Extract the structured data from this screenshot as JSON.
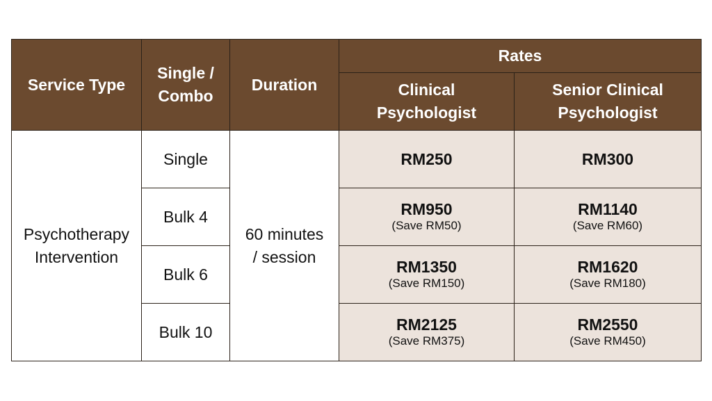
{
  "headers": {
    "service_type": "Service Type",
    "single_combo_line1": "Single /",
    "single_combo_line2": "Combo",
    "duration": "Duration",
    "rates": "Rates",
    "clinical_line1": "Clinical",
    "clinical_line2": "Psychologist",
    "senior_line1": "Senior Clinical",
    "senior_line2": "Psychologist"
  },
  "service": {
    "line1": "Psychotherapy",
    "line2": "Intervention"
  },
  "duration": {
    "line1": "60 minutes",
    "line2": "/ session"
  },
  "rows": [
    {
      "package": "Single",
      "clinical_price": "RM250",
      "clinical_save": "",
      "senior_price": "RM300",
      "senior_save": ""
    },
    {
      "package": "Bulk 4",
      "clinical_price": "RM950",
      "clinical_save": "(Save RM50)",
      "senior_price": "RM1140",
      "senior_save": "(Save RM60)"
    },
    {
      "package": "Bulk 6",
      "clinical_price": "RM1350",
      "clinical_save": "(Save RM150)",
      "senior_price": "RM1620",
      "senior_save": "(Save RM180)"
    },
    {
      "package": "Bulk 10",
      "clinical_price": "RM2125",
      "clinical_save": "(Save RM375)",
      "senior_price": "RM2550",
      "senior_save": "(Save RM450)"
    }
  ],
  "colors": {
    "header_bg": "#6b4a2f",
    "rate_cell_bg": "#ece3dc",
    "border": "#2b2118"
  }
}
